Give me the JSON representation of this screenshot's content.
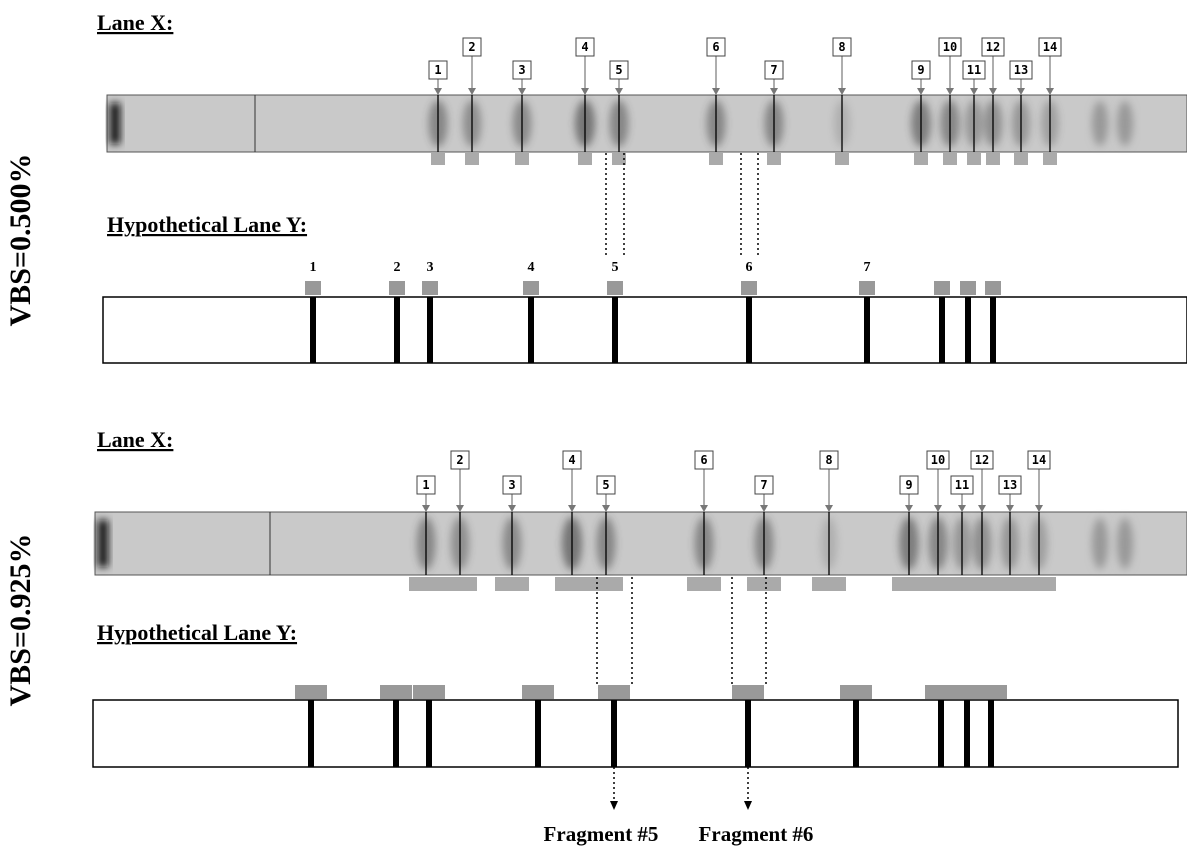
{
  "panels": [
    {
      "side_label": "VBS=0.500%",
      "lane_x_title": "Lane X:",
      "lane_x_bands": [
        "1",
        "2",
        "3",
        "4",
        "5",
        "6",
        "7",
        "8",
        "9",
        "10",
        "11",
        "12",
        "13",
        "14"
      ],
      "lane_y_title": "Hypothetical Lane Y:",
      "lane_y_bands": [
        "1",
        "2",
        "3",
        "4",
        "5",
        "6",
        "7"
      ]
    },
    {
      "side_label": "VBS=0.925%",
      "lane_x_title": "Lane X:",
      "lane_x_bands": [
        "1",
        "2",
        "3",
        "4",
        "5",
        "6",
        "7",
        "8",
        "9",
        "10",
        "11",
        "12",
        "13",
        "14"
      ],
      "lane_y_title": "Hypothetical Lane Y:"
    }
  ],
  "fragments": [
    "Fragment #5",
    "Fragment #6"
  ]
}
